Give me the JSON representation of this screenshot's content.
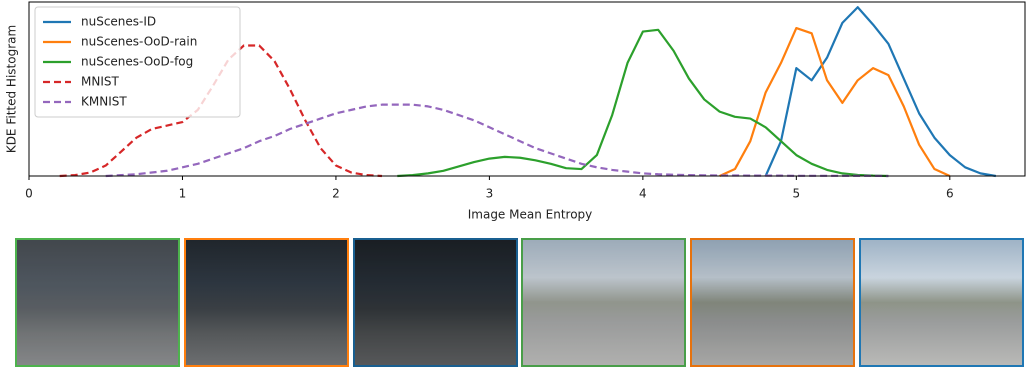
{
  "chart_data": {
    "type": "line",
    "xlabel": "Image Mean Entropy",
    "ylabel": "KDE Fitted Histogram",
    "x": [
      0.2,
      0.3,
      0.4,
      0.5,
      0.6,
      0.7,
      0.8,
      0.9,
      1.0,
      1.1,
      1.2,
      1.3,
      1.4,
      1.5,
      1.6,
      1.7,
      1.8,
      1.9,
      2.0,
      2.1,
      2.2,
      2.3,
      2.4,
      2.5,
      2.6,
      2.7,
      2.8,
      2.9,
      3.0,
      3.1,
      3.2,
      3.3,
      3.4,
      3.5,
      3.6,
      3.7,
      3.8,
      3.9,
      4.0,
      4.1,
      4.2,
      4.3,
      4.4,
      4.5,
      4.6,
      4.7,
      4.8,
      4.9,
      5.0,
      5.1,
      5.2,
      5.3,
      5.4,
      5.5,
      5.6,
      5.7,
      5.8,
      5.9,
      6.0,
      6.1,
      6.2,
      6.3
    ],
    "series": [
      {
        "name": "nuScenes-ID",
        "color": "#1f77b4",
        "linestyle": "solid",
        "values": [
          null,
          null,
          null,
          null,
          null,
          null,
          null,
          null,
          null,
          null,
          null,
          null,
          null,
          null,
          null,
          null,
          null,
          null,
          null,
          null,
          null,
          null,
          null,
          null,
          null,
          null,
          null,
          null,
          null,
          null,
          null,
          null,
          null,
          null,
          null,
          null,
          null,
          null,
          null,
          null,
          null,
          null,
          null,
          null,
          null,
          null,
          0,
          0.2,
          0.62,
          0.55,
          0.68,
          0.88,
          0.97,
          0.87,
          0.76,
          0.56,
          0.36,
          0.22,
          0.12,
          0.05,
          0.015,
          0
        ]
      },
      {
        "name": "nuScenes-OoD-rain",
        "color": "#ff7f0e",
        "linestyle": "solid",
        "values": [
          null,
          null,
          null,
          null,
          null,
          null,
          null,
          null,
          null,
          null,
          null,
          null,
          null,
          null,
          null,
          null,
          null,
          null,
          null,
          null,
          null,
          null,
          null,
          null,
          null,
          null,
          null,
          null,
          null,
          null,
          null,
          null,
          null,
          null,
          null,
          null,
          null,
          null,
          null,
          null,
          null,
          null,
          null,
          0,
          0.04,
          0.2,
          0.48,
          0.65,
          0.85,
          0.82,
          0.55,
          0.42,
          0.55,
          0.62,
          0.58,
          0.4,
          0.18,
          0.04,
          0,
          null,
          null,
          null
        ]
      },
      {
        "name": "nuScenes-OoD-fog",
        "color": "#2ca02c",
        "linestyle": "solid",
        "values": [
          null,
          null,
          null,
          null,
          null,
          null,
          null,
          null,
          null,
          null,
          null,
          null,
          null,
          null,
          null,
          null,
          null,
          null,
          null,
          null,
          null,
          null,
          0,
          0.005,
          0.015,
          0.03,
          0.055,
          0.08,
          0.1,
          0.11,
          0.105,
          0.09,
          0.07,
          0.045,
          0.04,
          0.12,
          0.35,
          0.65,
          0.83,
          0.84,
          0.72,
          0.56,
          0.44,
          0.37,
          0.34,
          0.33,
          0.28,
          0.2,
          0.12,
          0.07,
          0.035,
          0.015,
          0.006,
          0.002,
          0,
          null,
          null,
          null,
          null,
          null,
          null,
          null
        ]
      },
      {
        "name": "MNIST",
        "color": "#d62728",
        "linestyle": "dashed",
        "values": [
          0,
          0.005,
          0.02,
          0.06,
          0.14,
          0.22,
          0.27,
          0.29,
          0.31,
          0.38,
          0.52,
          0.67,
          0.75,
          0.75,
          0.66,
          0.5,
          0.32,
          0.16,
          0.06,
          0.02,
          0.005,
          0,
          null,
          null,
          null,
          null,
          null,
          null,
          null,
          null,
          null,
          null,
          null,
          null,
          null,
          null,
          null,
          null,
          null,
          null,
          null,
          null,
          null,
          null,
          null,
          null,
          null,
          null,
          null,
          null,
          null,
          null,
          null,
          null,
          null,
          null,
          null,
          null,
          null,
          null,
          null,
          null
        ]
      },
      {
        "name": "KMNIST",
        "color": "#9467bd",
        "linestyle": "dashed",
        "values": [
          null,
          null,
          null,
          0,
          0.005,
          0.01,
          0.02,
          0.03,
          0.05,
          0.07,
          0.1,
          0.13,
          0.16,
          0.2,
          0.23,
          0.27,
          0.3,
          0.33,
          0.36,
          0.38,
          0.4,
          0.41,
          0.41,
          0.41,
          0.4,
          0.38,
          0.35,
          0.32,
          0.28,
          0.24,
          0.2,
          0.16,
          0.13,
          0.1,
          0.07,
          0.05,
          0.035,
          0.025,
          0.015,
          0.01,
          0.007,
          0.005,
          0.004,
          0.003,
          0.003,
          0.002,
          0.002,
          0.002,
          0.001,
          0.001,
          0.001,
          0.001,
          0.001,
          0.001,
          0,
          null,
          null,
          null,
          null,
          null,
          null,
          null
        ]
      }
    ],
    "xlim": [
      0,
      6.49
    ],
    "ylim": [
      0,
      1
    ],
    "xticks": [
      0,
      1,
      2,
      3,
      4,
      5,
      6
    ],
    "grid": false,
    "legend": "upper left"
  }
}
